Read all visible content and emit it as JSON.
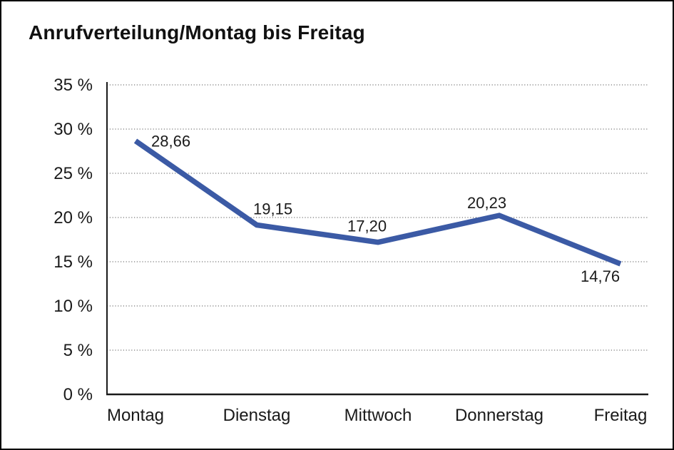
{
  "chart": {
    "title": "Anrufverteilung/Montag bis Freitag"
  },
  "chart_data": {
    "type": "line",
    "title": "Anrufverteilung/Montag bis Freitag",
    "categories": [
      "Montag",
      "Dienstag",
      "Mittwoch",
      "Donnerstag",
      "Freitag"
    ],
    "series": [
      {
        "name": "Anrufverteilung",
        "values": [
          28.66,
          19.15,
          17.2,
          20.23,
          14.76
        ]
      }
    ],
    "point_labels": [
      "28,66",
      "19,15",
      "17,20",
      "20,23",
      "14,76"
    ],
    "y_ticks": [
      0,
      5,
      10,
      15,
      20,
      25,
      30,
      35
    ],
    "y_tick_labels": [
      "0 %",
      "5 %",
      "10 %",
      "15 %",
      "20 %",
      "25 %",
      "30 %",
      "35 %"
    ],
    "xlabel": "",
    "ylabel": "",
    "ylim": [
      0,
      35
    ],
    "grid": "horizontal-dotted",
    "legend": "none",
    "colors": {
      "line": "#3B5AA5",
      "axis": "#1a1a1a",
      "gridline": "#555555",
      "text": "#1a1a1a",
      "background": "#ffffff",
      "frame_border": "#000000"
    }
  }
}
